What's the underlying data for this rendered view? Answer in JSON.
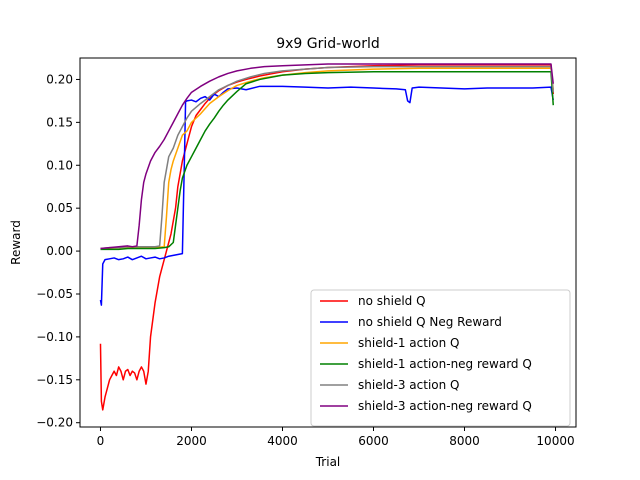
{
  "chart_data": {
    "type": "line",
    "title": "9x9 Grid-world",
    "xlabel": "Trial",
    "ylabel": "Reward",
    "xlim": [
      -450,
      10450
    ],
    "ylim": [
      -0.205,
      0.225
    ],
    "xticks": [
      0,
      2000,
      4000,
      6000,
      8000,
      10000
    ],
    "xtick_labels": [
      "0",
      "2000",
      "4000",
      "6000",
      "8000",
      "10000"
    ],
    "yticks": [
      -0.2,
      -0.15,
      -0.1,
      -0.05,
      0.0,
      0.05,
      0.1,
      0.15,
      0.2
    ],
    "ytick_labels": [
      "−0.20",
      "−0.15",
      "−0.10",
      "−0.05",
      "0.00",
      "0.05",
      "0.10",
      "0.15",
      "0.20"
    ],
    "grid": false,
    "legend_position": "lower-right",
    "series": [
      {
        "name": "no shield Q",
        "color": "#ff0000",
        "x": [
          0,
          20,
          50,
          100,
          150,
          200,
          250,
          300,
          350,
          400,
          450,
          500,
          550,
          600,
          650,
          700,
          750,
          800,
          850,
          900,
          950,
          1000,
          1050,
          1100,
          1150,
          1200,
          1250,
          1300,
          1350,
          1400,
          1450,
          1500,
          1550,
          1600,
          1650,
          1700,
          1750,
          1800,
          1850,
          1900,
          1950,
          2000,
          2100,
          2200,
          2300,
          2400,
          2500,
          2600,
          2800,
          3000,
          3200,
          3500,
          3800,
          4000,
          4500,
          5000,
          5500,
          6000,
          7000,
          8000,
          9000,
          9500,
          9900,
          9950
        ],
        "y": [
          -0.108,
          -0.175,
          -0.185,
          -0.17,
          -0.16,
          -0.15,
          -0.145,
          -0.14,
          -0.145,
          -0.135,
          -0.14,
          -0.15,
          -0.14,
          -0.138,
          -0.145,
          -0.14,
          -0.142,
          -0.15,
          -0.14,
          -0.135,
          -0.14,
          -0.155,
          -0.14,
          -0.1,
          -0.08,
          -0.06,
          -0.045,
          -0.03,
          -0.02,
          -0.01,
          0.0,
          0.01,
          0.02,
          0.035,
          0.05,
          0.075,
          0.09,
          0.105,
          0.115,
          0.125,
          0.135,
          0.145,
          0.158,
          0.165,
          0.172,
          0.178,
          0.183,
          0.187,
          0.193,
          0.197,
          0.2,
          0.204,
          0.207,
          0.209,
          0.212,
          0.214,
          0.215,
          0.216,
          0.217,
          0.217,
          0.217,
          0.217,
          0.217,
          0.183
        ]
      },
      {
        "name": "no shield Q Neg Reward",
        "color": "#0000ff",
        "x": [
          0,
          20,
          50,
          100,
          200,
          300,
          400,
          500,
          600,
          700,
          800,
          900,
          1000,
          1100,
          1200,
          1300,
          1400,
          1500,
          1600,
          1700,
          1800,
          1850,
          1870,
          1900,
          2000,
          2100,
          2200,
          2300,
          2400,
          2500,
          2600,
          2700,
          2800,
          3000,
          3200,
          3500,
          4000,
          4500,
          5000,
          5500,
          6000,
          6500,
          6700,
          6750,
          6800,
          6850,
          7000,
          7500,
          8000,
          8500,
          9000,
          9500,
          9900,
          9950
        ],
        "y": [
          -0.057,
          -0.063,
          -0.015,
          -0.01,
          -0.009,
          -0.008,
          -0.01,
          -0.009,
          -0.007,
          -0.01,
          -0.008,
          -0.006,
          -0.009,
          -0.008,
          -0.007,
          -0.009,
          -0.008,
          -0.006,
          -0.005,
          -0.004,
          -0.003,
          0.12,
          0.174,
          0.175,
          0.176,
          0.174,
          0.178,
          0.18,
          0.176,
          0.183,
          0.18,
          0.185,
          0.189,
          0.19,
          0.188,
          0.192,
          0.192,
          0.191,
          0.19,
          0.191,
          0.19,
          0.189,
          0.188,
          0.175,
          0.173,
          0.19,
          0.191,
          0.19,
          0.189,
          0.19,
          0.19,
          0.19,
          0.191,
          0.176
        ]
      },
      {
        "name": "shield-1 action Q",
        "color": "#ffa500",
        "x": [
          0,
          200,
          400,
          600,
          800,
          1000,
          1200,
          1400,
          1450,
          1500,
          1550,
          1600,
          1700,
          1800,
          1900,
          2000,
          2200,
          2400,
          2600,
          2800,
          3000,
          3300,
          3600,
          4000,
          4500,
          5000,
          6000,
          7000,
          8000,
          9000,
          9900,
          9950
        ],
        "y": [
          0.003,
          0.003,
          0.004,
          0.004,
          0.004,
          0.004,
          0.004,
          0.005,
          0.04,
          0.08,
          0.095,
          0.105,
          0.12,
          0.135,
          0.14,
          0.15,
          0.16,
          0.172,
          0.18,
          0.187,
          0.193,
          0.198,
          0.202,
          0.205,
          0.208,
          0.21,
          0.212,
          0.213,
          0.213,
          0.213,
          0.213,
          0.188
        ]
      },
      {
        "name": "shield-1 action-neg reward Q",
        "color": "#008000",
        "x": [
          0,
          200,
          400,
          600,
          800,
          1000,
          1200,
          1400,
          1500,
          1600,
          1650,
          1700,
          1750,
          1800,
          1900,
          2000,
          2100,
          2200,
          2300,
          2400,
          2500,
          2600,
          2700,
          2800,
          3000,
          3200,
          3500,
          4000,
          4500,
          5000,
          6000,
          7000,
          8000,
          9000,
          9900,
          9950
        ],
        "y": [
          0.002,
          0.002,
          0.002,
          0.003,
          0.003,
          0.003,
          0.003,
          0.004,
          0.005,
          0.01,
          0.03,
          0.05,
          0.07,
          0.085,
          0.1,
          0.11,
          0.12,
          0.13,
          0.14,
          0.148,
          0.155,
          0.163,
          0.17,
          0.176,
          0.186,
          0.195,
          0.2,
          0.205,
          0.207,
          0.208,
          0.209,
          0.209,
          0.209,
          0.209,
          0.209,
          0.17
        ]
      },
      {
        "name": "shield-3 action Q",
        "color": "#808080",
        "x": [
          0,
          200,
          400,
          600,
          800,
          1000,
          1200,
          1300,
          1350,
          1400,
          1450,
          1500,
          1550,
          1600,
          1700,
          1800,
          1900,
          2000,
          2200,
          2400,
          2600,
          2800,
          3000,
          3300,
          3600,
          4000,
          4500,
          5000,
          6000,
          7000,
          8000,
          9000,
          9900,
          9950
        ],
        "y": [
          0.003,
          0.004,
          0.004,
          0.005,
          0.005,
          0.005,
          0.005,
          0.006,
          0.04,
          0.08,
          0.095,
          0.11,
          0.115,
          0.12,
          0.135,
          0.145,
          0.155,
          0.163,
          0.172,
          0.18,
          0.188,
          0.193,
          0.198,
          0.203,
          0.207,
          0.21,
          0.212,
          0.214,
          0.215,
          0.215,
          0.215,
          0.215,
          0.215,
          0.185
        ]
      },
      {
        "name": "shield-3 action-neg reward Q",
        "color": "#800080",
        "x": [
          0,
          200,
          400,
          600,
          700,
          800,
          850,
          900,
          950,
          1000,
          1100,
          1200,
          1300,
          1400,
          1500,
          1600,
          1700,
          1800,
          1900,
          2000,
          2200,
          2400,
          2600,
          2800,
          3000,
          3300,
          3600,
          4000,
          4500,
          5000,
          6000,
          7000,
          8000,
          9000,
          9900,
          9950
        ],
        "y": [
          0.003,
          0.004,
          0.005,
          0.006,
          0.005,
          0.006,
          0.03,
          0.06,
          0.08,
          0.09,
          0.105,
          0.115,
          0.122,
          0.13,
          0.14,
          0.15,
          0.16,
          0.17,
          0.178,
          0.185,
          0.192,
          0.198,
          0.203,
          0.207,
          0.21,
          0.213,
          0.215,
          0.216,
          0.217,
          0.218,
          0.218,
          0.218,
          0.218,
          0.218,
          0.218,
          0.195
        ]
      }
    ]
  }
}
